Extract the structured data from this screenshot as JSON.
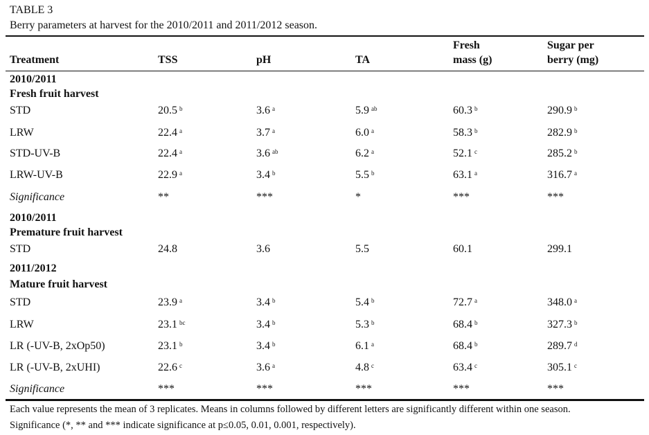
{
  "table_label": "TABLE 3",
  "caption": "Berry parameters at harvest for the 2010/2011 and 2011/2012 season.",
  "headers": [
    "Treatment",
    "TSS",
    "pH",
    "TA",
    "Fresh mass (g)",
    "Sugar per berry (mg)"
  ],
  "header_lines": {
    "fresh_1": "Fresh",
    "fresh_2": "mass (g)",
    "sugar_1": "Sugar per",
    "sugar_2": "berry (mg)"
  },
  "rows": [
    {
      "type": "section",
      "label": "2010/2011"
    },
    {
      "type": "section",
      "label": "Fresh fruit harvest"
    },
    {
      "type": "data",
      "cells": [
        [
          "STD",
          ""
        ],
        [
          "20.5",
          "b"
        ],
        [
          "3.6",
          "a"
        ],
        [
          "5.9",
          "ab"
        ],
        [
          "60.3",
          "b"
        ],
        [
          "290.9",
          "b"
        ]
      ]
    },
    {
      "type": "data",
      "cells": [
        [
          "LRW",
          ""
        ],
        [
          "22.4",
          "a"
        ],
        [
          "3.7",
          "a"
        ],
        [
          "6.0",
          "a"
        ],
        [
          "58.3",
          "b"
        ],
        [
          "282.9",
          "b"
        ]
      ]
    },
    {
      "type": "data",
      "cells": [
        [
          "STD-UV-B",
          ""
        ],
        [
          "22.4",
          "a"
        ],
        [
          "3.6",
          "ab"
        ],
        [
          "6.2",
          "a"
        ],
        [
          "52.1",
          "c"
        ],
        [
          "285.2",
          "b"
        ]
      ]
    },
    {
      "type": "data",
      "cells": [
        [
          "LRW-UV-B",
          ""
        ],
        [
          "22.9",
          "a"
        ],
        [
          "3.4",
          "b"
        ],
        [
          "5.5",
          "b"
        ],
        [
          "63.1",
          "a"
        ],
        [
          "316.7",
          "a"
        ]
      ]
    },
    {
      "type": "sig",
      "cells": [
        [
          "Significance",
          ""
        ],
        [
          "**",
          ""
        ],
        [
          "***",
          ""
        ],
        [
          "*",
          ""
        ],
        [
          "***",
          ""
        ],
        [
          "***",
          ""
        ]
      ]
    },
    {
      "type": "section",
      "label": "2010/2011"
    },
    {
      "type": "section",
      "label": "Premature fruit harvest"
    },
    {
      "type": "data",
      "cells": [
        [
          "STD",
          ""
        ],
        [
          "24.8",
          ""
        ],
        [
          "3.6",
          ""
        ],
        [
          "5.5",
          ""
        ],
        [
          "60.1",
          ""
        ],
        [
          "299.1",
          ""
        ]
      ]
    },
    {
      "type": "section",
      "label": "2011/2012"
    },
    {
      "type": "section",
      "label": "Mature fruit harvest"
    },
    {
      "type": "data",
      "cells": [
        [
          "STD",
          ""
        ],
        [
          "23.9",
          "a"
        ],
        [
          "3.4",
          "b"
        ],
        [
          "5.4",
          "b"
        ],
        [
          "72.7",
          "a"
        ],
        [
          "348.0",
          "a"
        ]
      ]
    },
    {
      "type": "data",
      "cells": [
        [
          "LRW",
          ""
        ],
        [
          "23.1",
          "bc"
        ],
        [
          "3.4",
          "b"
        ],
        [
          "5.3",
          "b"
        ],
        [
          "68.4",
          "b"
        ],
        [
          "327.3",
          "b"
        ]
      ]
    },
    {
      "type": "data",
      "cells": [
        [
          "LR (-UV-B, 2xOp50)",
          ""
        ],
        [
          "23.1",
          "b"
        ],
        [
          "3.4",
          "b"
        ],
        [
          "6.1",
          "a"
        ],
        [
          "68.4",
          "b"
        ],
        [
          "289.7",
          "d"
        ]
      ]
    },
    {
      "type": "data",
      "cells": [
        [
          "LR (-UV-B, 2xUHI)",
          ""
        ],
        [
          "22.6",
          "c"
        ],
        [
          "3.6",
          "a"
        ],
        [
          "4.8",
          "c"
        ],
        [
          "63.4",
          "c"
        ],
        [
          "305.1",
          "c"
        ]
      ]
    },
    {
      "type": "sig",
      "cells": [
        [
          "Significance",
          ""
        ],
        [
          "***",
          ""
        ],
        [
          "***",
          ""
        ],
        [
          "***",
          ""
        ],
        [
          "***",
          ""
        ],
        [
          "***",
          ""
        ]
      ]
    }
  ],
  "footnotes": [
    "Each value represents the mean of 3 replicates. Means in columns followed by different letters are significantly different within one season.",
    "Significance (*, ** and *** indicate significance at p≤0.05, 0.01, 0.001, respectively)."
  ]
}
